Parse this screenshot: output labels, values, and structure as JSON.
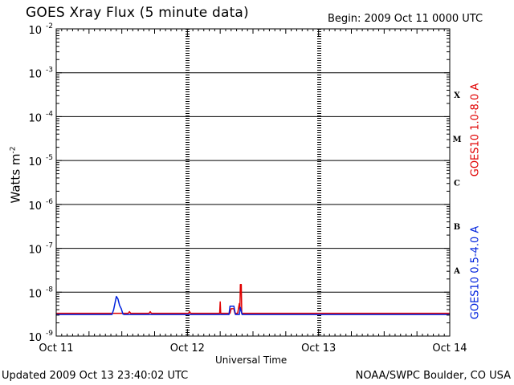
{
  "header": {
    "title": "GOES Xray Flux (5 minute data)",
    "begin": "Begin:  2009 Oct 11 0000 UTC"
  },
  "footer": {
    "updated": "Updated 2009 Oct 13 23:40:02 UTC",
    "credit": "NOAA/SWPC Boulder, CO USA"
  },
  "colors": {
    "long_channel": "#e00000",
    "short_channel": "#0022dd",
    "axis": "#000000"
  },
  "chart_data": {
    "type": "line",
    "title": "GOES Xray Flux (5 minute data)",
    "xlabel": "Universal Time",
    "ylabel": "Watts m",
    "ylabel_superscript": "-2",
    "yscale": "log",
    "ylim": [
      1e-09,
      0.01
    ],
    "xlim": [
      0,
      72
    ],
    "x_units": "hours since 2009 Oct 11 0000 UTC",
    "x_ticks": [
      {
        "x": 0,
        "label": "Oct 11"
      },
      {
        "x": 24,
        "label": "Oct 12"
      },
      {
        "x": 48,
        "label": "Oct 13"
      },
      {
        "x": 72,
        "label": "Oct 14"
      }
    ],
    "y_ticks": [
      {
        "exp": -9,
        "base": "10",
        "sup": "-9"
      },
      {
        "exp": -8,
        "base": "10",
        "sup": "-8"
      },
      {
        "exp": -7,
        "base": "10",
        "sup": "-7"
      },
      {
        "exp": -6,
        "base": "10",
        "sup": "-6"
      },
      {
        "exp": -5,
        "base": "10",
        "sup": "-5"
      },
      {
        "exp": -4,
        "base": "10",
        "sup": "-4"
      },
      {
        "exp": -3,
        "base": "10",
        "sup": "-3"
      },
      {
        "exp": -2,
        "base": "10",
        "sup": "-2"
      }
    ],
    "flare_classes": [
      {
        "label": "A",
        "exp": -7.5
      },
      {
        "label": "B",
        "exp": -6.5
      },
      {
        "label": "C",
        "exp": -5.5
      },
      {
        "label": "M",
        "exp": -4.5
      },
      {
        "label": "X",
        "exp": -3.5
      }
    ],
    "gridlines_y_exp": [
      -8,
      -7,
      -6,
      -5,
      -4,
      -3
    ],
    "day_dividers_x": [
      24,
      48
    ],
    "series": [
      {
        "name": "GOES10 1.0-8.0 A",
        "color": "#e00000",
        "points": [
          [
            0,
            3.3e-09
          ],
          [
            13.2,
            3.3e-09
          ],
          [
            13.4,
            3.6e-09
          ],
          [
            13.6,
            3.3e-09
          ],
          [
            17.0,
            3.3e-09
          ],
          [
            17.2,
            3.6e-09
          ],
          [
            17.4,
            3.3e-09
          ],
          [
            22.0,
            3.3e-09
          ],
          [
            24.2,
            3.3e-09
          ],
          [
            24.4,
            3.6e-09
          ],
          [
            24.6,
            3.3e-09
          ],
          [
            29.9,
            3.3e-09
          ],
          [
            30.0,
            6e-09
          ],
          [
            30.1,
            3.3e-09
          ],
          [
            31.8,
            3.3e-09
          ],
          [
            32.0,
            4.2e-09
          ],
          [
            32.5,
            4.2e-09
          ],
          [
            32.7,
            3.3e-09
          ],
          [
            33.2,
            3.3e-09
          ],
          [
            33.5,
            5.5e-09
          ],
          [
            33.6,
            4e-09
          ],
          [
            33.7,
            1.5e-08
          ],
          [
            33.85,
            1.5e-08
          ],
          [
            33.95,
            3.3e-09
          ],
          [
            72,
            3.3e-09
          ]
        ]
      },
      {
        "name": "GOES10 0.5-4.0 A",
        "color": "#0022dd",
        "points": [
          [
            0,
            3.1e-09
          ],
          [
            10.2,
            3.1e-09
          ],
          [
            10.5,
            4e-09
          ],
          [
            10.8,
            6e-09
          ],
          [
            11.0,
            8e-09
          ],
          [
            11.3,
            7e-09
          ],
          [
            11.6,
            5e-09
          ],
          [
            11.9,
            4.2e-09
          ],
          [
            12.2,
            3.2e-09
          ],
          [
            12.4,
            3.1e-09
          ],
          [
            31.6,
            3.1e-09
          ],
          [
            31.8,
            4.8e-09
          ],
          [
            32.5,
            4.8e-09
          ],
          [
            32.8,
            3.1e-09
          ],
          [
            33.5,
            3.1e-09
          ],
          [
            33.7,
            4.5e-09
          ],
          [
            34.0,
            3.1e-09
          ],
          [
            72,
            3.1e-09
          ]
        ]
      }
    ]
  }
}
